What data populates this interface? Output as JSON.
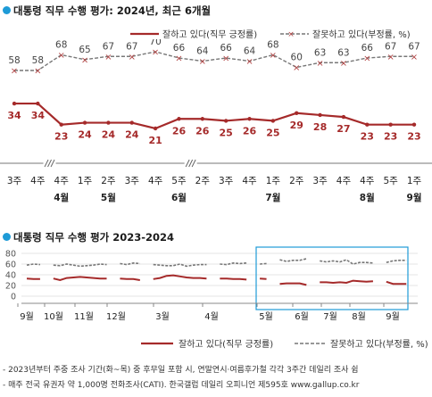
{
  "chart1_title": "대통령 직무 수행 평가: 2024년, 최근 6개월",
  "chart2_title": "대통령 직무 수행 평가 2023-2024",
  "legend": {
    "approve": "잘하고 있다(직무 긍정률)",
    "disapprove": "잘못하고 있다(부정률, %)"
  },
  "colors": {
    "approve": "#a52a2a",
    "disapprove": "#777777",
    "highlight": "#1e9bd7",
    "title_dot": "#1e9bd7"
  },
  "footnotes": [
    "- 2023년부터 주중 조사 기간(화~목) 중 후무일 포함 시, 연말연시·여름후가철 각각 3주간 데일리 조사 쉼",
    "- 매주 전국 유권자 약 1,000명 전화조사(CATI). 한국갤럽 데일리 오피니언 제595호 www.gallup.co.kr"
  ],
  "chart_data": [
    {
      "type": "line",
      "title": "대통령 직무 수행 평가: 2024년, 최근 6개월",
      "x": [
        "3주",
        "4주",
        "4주",
        "1주",
        "2주",
        "3주",
        "4주",
        "5주",
        "2주",
        "3주",
        "4주",
        "1주",
        "2주",
        "3주",
        "4주",
        "4주",
        "5주",
        "1주"
      ],
      "month_labels": [
        {
          "index": 2,
          "label": "4월"
        },
        {
          "index": 4,
          "label": "5월"
        },
        {
          "index": 7,
          "label": "6월"
        },
        {
          "index": 11,
          "label": "7월"
        },
        {
          "index": 15,
          "label": "8월"
        },
        {
          "index": 17,
          "label": "9월"
        }
      ],
      "breaks": [
        1.5,
        7.5
      ],
      "series": [
        {
          "name": "잘못하고 있다(부정률, %)",
          "values": [
            58,
            58,
            68,
            65,
            67,
            67,
            70,
            66,
            64,
            66,
            64,
            68,
            60,
            63,
            63,
            66,
            67,
            67
          ]
        },
        {
          "name": "잘하고 있다(직무 긍정률)",
          "values": [
            34,
            34,
            23,
            24,
            24,
            24,
            21,
            26,
            26,
            25,
            26,
            25,
            29,
            28,
            27,
            23,
            23,
            23
          ]
        }
      ]
    },
    {
      "type": "line",
      "title": "대통령 직무 수행 평가 2023-2024",
      "y_ticks": [
        0,
        20,
        40,
        60,
        80
      ],
      "ylim": [
        0,
        80
      ],
      "x_labels": [
        "9월",
        "10월",
        "11월",
        "12월",
        "3월",
        "4월",
        "5월",
        "6월",
        "7월",
        "8월",
        "9월"
      ],
      "segments": [
        {
          "x": [
            0,
            1,
            2
          ],
          "approve": [
            33,
            32,
            32
          ],
          "disapprove": [
            58,
            60,
            59
          ]
        },
        {
          "x": [
            4,
            5,
            6,
            7,
            8,
            9,
            10,
            11,
            12
          ],
          "approve": [
            33,
            30,
            34,
            35,
            36,
            35,
            34,
            33,
            33
          ],
          "disapprove": [
            58,
            57,
            60,
            58,
            56,
            57,
            58,
            60,
            59
          ]
        },
        {
          "x": [
            14,
            15,
            16,
            17
          ],
          "approve": [
            33,
            32,
            32,
            30
          ],
          "disapprove": [
            61,
            59,
            62,
            61
          ]
        },
        {
          "x": [
            19,
            20,
            21,
            22,
            23,
            24,
            25,
            26,
            27
          ],
          "approve": [
            32,
            34,
            38,
            39,
            37,
            35,
            34,
            34,
            33
          ],
          "disapprove": [
            59,
            58,
            57,
            57,
            60,
            56,
            58,
            59,
            59
          ]
        },
        {
          "x": [
            29,
            30,
            31,
            32,
            33
          ],
          "approve": [
            33,
            33,
            32,
            32,
            31
          ],
          "disapprove": [
            60,
            59,
            62,
            61,
            62
          ]
        },
        {
          "x": [
            35,
            36
          ],
          "approve": [
            33,
            32
          ],
          "disapprove": [
            60,
            61
          ]
        },
        {
          "x": [
            38,
            39,
            40,
            41,
            42
          ],
          "approve": [
            23,
            24,
            24,
            24,
            21
          ],
          "disapprove": [
            68,
            65,
            67,
            67,
            70
          ]
        },
        {
          "x": [
            44,
            45,
            46,
            47,
            48,
            49,
            50,
            51,
            52
          ],
          "approve": [
            26,
            26,
            25,
            26,
            25,
            29,
            28,
            27,
            28
          ],
          "disapprove": [
            66,
            64,
            66,
            64,
            68,
            60,
            63,
            63,
            62
          ]
        },
        {
          "x": [
            54,
            55,
            56,
            57
          ],
          "approve": [
            27,
            23,
            23,
            23
          ],
          "disapprove": [
            63,
            66,
            67,
            67
          ]
        }
      ]
    }
  ]
}
